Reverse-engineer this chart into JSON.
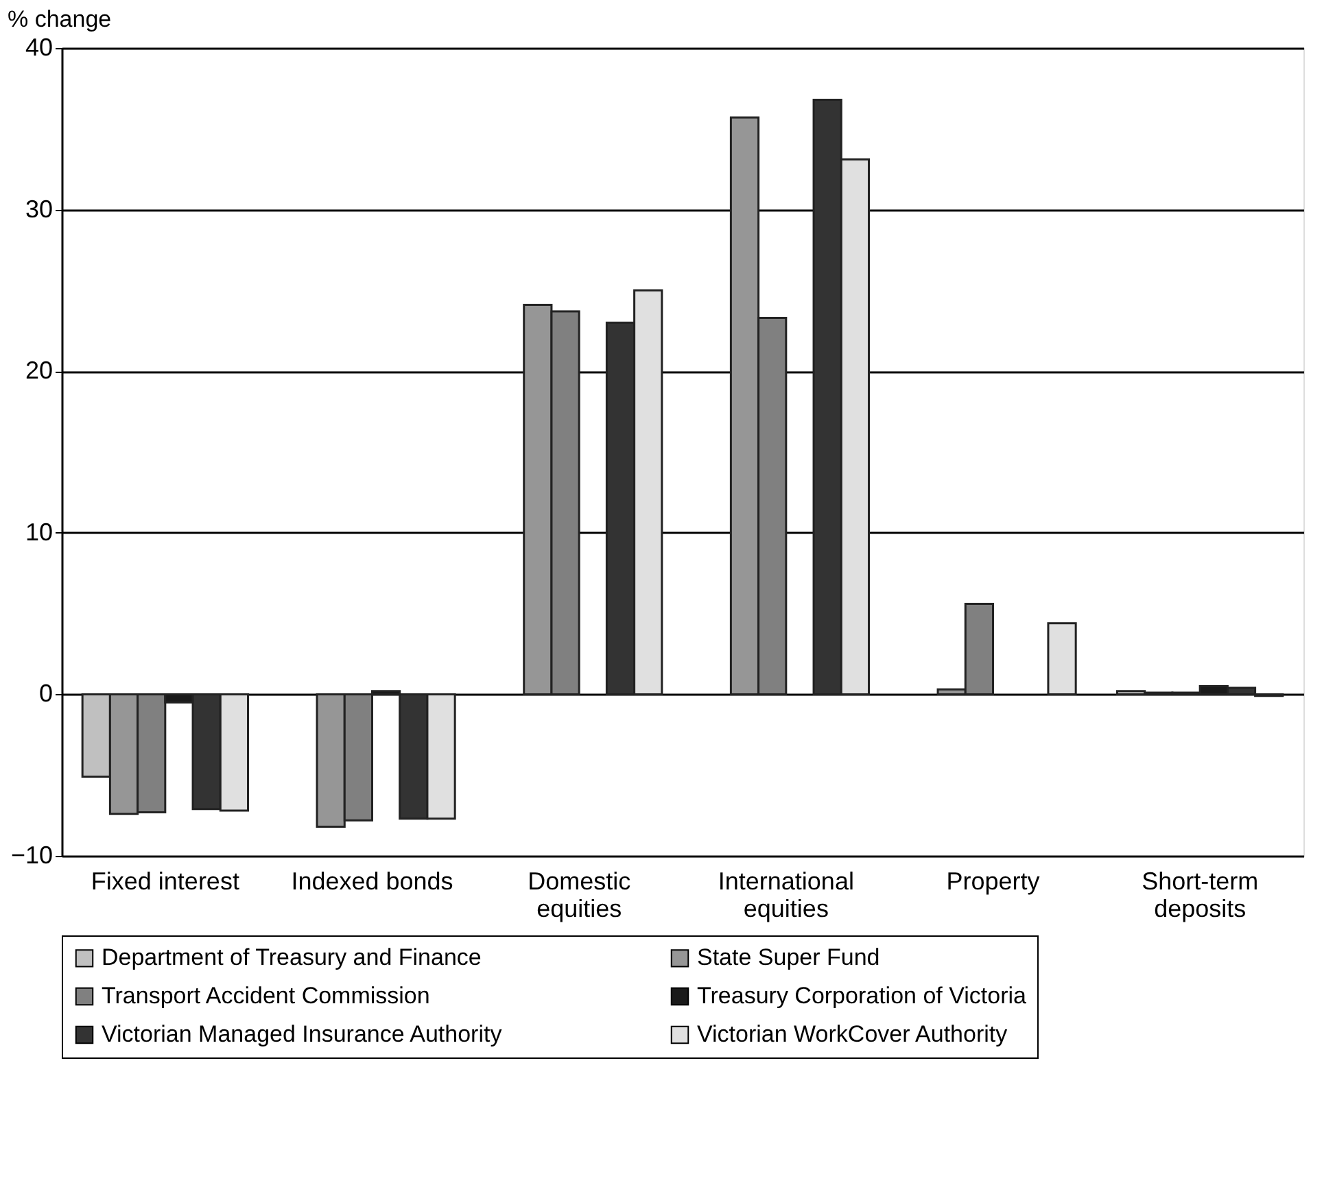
{
  "chart_data": {
    "type": "bar",
    "ylabel": "% change",
    "categories": [
      "Fixed interest",
      "Indexed bonds",
      "Domestic equities",
      "International equities",
      "Property",
      "Short-term deposits"
    ],
    "series": [
      {
        "name": "Department of Treasury and Finance",
        "color": "#c0c0c0",
        "values": [
          -5.1,
          null,
          null,
          null,
          null,
          0.2
        ]
      },
      {
        "name": "State Super Fund",
        "color": "#969696",
        "values": [
          -7.4,
          -8.2,
          24.1,
          35.7,
          0.3,
          0.1
        ]
      },
      {
        "name": "Transport Accident Commission",
        "color": "#808080",
        "values": [
          -7.3,
          -7.8,
          23.7,
          23.3,
          5.6,
          0.1
        ]
      },
      {
        "name": "Treasury Corporation of Victoria",
        "color": "#1a1a1a",
        "values": [
          -0.5,
          0.2,
          null,
          null,
          null,
          0.5
        ]
      },
      {
        "name": "Victorian Managed Insurance Authority",
        "color": "#333333",
        "values": [
          -7.1,
          -7.7,
          23.0,
          36.8,
          null,
          0.4
        ]
      },
      {
        "name": "Victorian WorkCover Authority",
        "color": "#e0e0e0",
        "values": [
          -7.2,
          -7.7,
          25.0,
          33.1,
          4.4,
          -0.1
        ]
      }
    ],
    "ylim": [
      -10,
      40
    ],
    "yticks": [
      -10,
      0,
      10,
      20,
      30,
      40
    ],
    "grid": "y",
    "legend": "bottom"
  }
}
